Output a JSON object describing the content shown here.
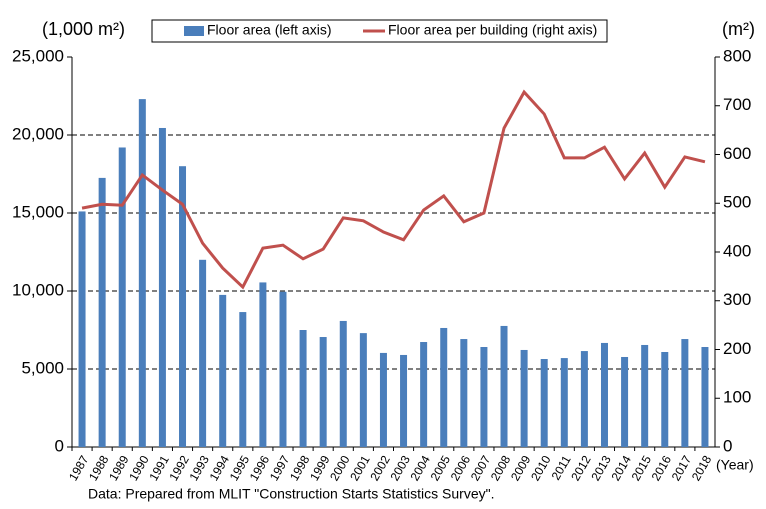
{
  "chart_data": {
    "type": "bar_line",
    "y_unit_label": "(1,000 m²)",
    "y2_unit_label": "(m²)",
    "x_unit_label": "(Year)",
    "source": "Data: Prepared from MLIT \"Construction Starts Statistics Survey\".",
    "categories": [
      "1987",
      "1988",
      "1989",
      "1990",
      "1991",
      "1992",
      "1993",
      "1994",
      "1995",
      "1996",
      "1997",
      "1998",
      "1999",
      "2000",
      "2001",
      "2002",
      "2003",
      "2004",
      "2005",
      "2006",
      "2007",
      "2008",
      "2009",
      "2010",
      "2011",
      "2012",
      "2013",
      "2014",
      "2015",
      "2016",
      "2017",
      "2018"
    ],
    "series": [
      {
        "name": "Floor area (left axis)",
        "type": "bar",
        "color": "#4a7ebb",
        "values": [
          15100,
          17250,
          19200,
          22300,
          20450,
          18000,
          12000,
          9750,
          8650,
          10550,
          9950,
          7500,
          7050,
          8080,
          7300,
          6030,
          5900,
          6730,
          7630,
          6920,
          6410,
          7760,
          6220,
          5640,
          5700,
          6150,
          6670,
          5770,
          6540,
          6090,
          6920,
          6410
        ]
      },
      {
        "name": "Floor area per building (right axis)",
        "type": "line",
        "axis": "y2",
        "color": "#c0504d",
        "values": [
          490,
          498,
          496,
          558,
          527,
          498,
          418,
          367,
          328,
          408,
          414,
          386,
          406,
          470,
          464,
          441,
          425,
          486,
          515,
          462,
          480,
          654,
          728,
          683,
          593,
          593,
          615,
          550,
          603,
          533,
          595,
          585
        ]
      }
    ],
    "ylim": [
      0,
      25000
    ],
    "yticks": [
      0,
      {
        "value": 5000,
        "label": "5,000"
      },
      {
        "value": 10000,
        "label": "10,000"
      },
      {
        "value": 15000,
        "label": "15,000"
      },
      {
        "value": 20000,
        "label": "20,000"
      },
      {
        "value": 25000,
        "label": "25,000"
      }
    ],
    "y2lim": [
      0,
      800
    ],
    "y2ticks": [
      0,
      100,
      200,
      300,
      400,
      500,
      600,
      700,
      800
    ],
    "grid": true
  }
}
